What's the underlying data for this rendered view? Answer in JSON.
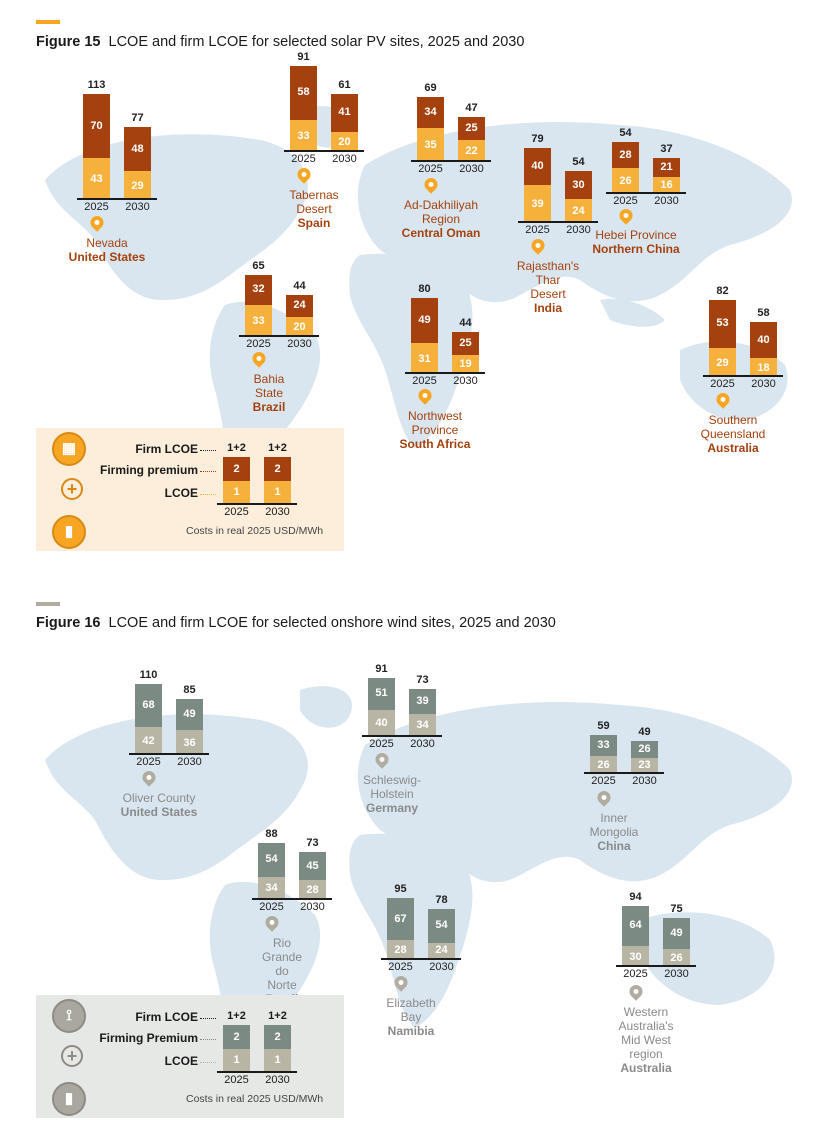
{
  "figure15": {
    "number": "Figure 15",
    "title": "LCOE and firm LCOE for selected solar PV sites, 2025 and 2030",
    "colors": {
      "premium": "#a4410f",
      "lcoe": "#f6b13c",
      "label": "#a4410f",
      "pin": "#f6a623",
      "accent": "#f6a623",
      "legend_bg": "#fdeedb"
    },
    "sites": [
      {
        "place": "Nevada",
        "country": "United States",
        "years": [
          "2025",
          "2030"
        ],
        "totals": [
          "113",
          "77"
        ],
        "premium": [
          "70",
          "48"
        ],
        "lcoe": [
          "43",
          "29"
        ]
      },
      {
        "place": "Tabernas Desert",
        "country": "Spain",
        "years": [
          "2025",
          "2030"
        ],
        "totals": [
          "91",
          "61"
        ],
        "premium": [
          "58",
          "41"
        ],
        "lcoe": [
          "33",
          "20"
        ]
      },
      {
        "place": "Ad-Dakhiliyah Region",
        "country": "Central Oman",
        "years": [
          "2025",
          "2030"
        ],
        "totals": [
          "69",
          "47"
        ],
        "premium": [
          "34",
          "25"
        ],
        "lcoe": [
          "35",
          "22"
        ]
      },
      {
        "place": "Rajasthan's Thar Desert",
        "country": "India",
        "years": [
          "2025",
          "2030"
        ],
        "totals": [
          "79",
          "54"
        ],
        "premium": [
          "40",
          "30"
        ],
        "lcoe": [
          "39",
          "24"
        ]
      },
      {
        "place": "Hebei Province",
        "country": "Northern China",
        "years": [
          "2025",
          "2030"
        ],
        "totals": [
          "54",
          "37"
        ],
        "premium": [
          "28",
          "21"
        ],
        "lcoe": [
          "26",
          "16"
        ]
      },
      {
        "place": "Bahia State",
        "country": "Brazil",
        "years": [
          "2025",
          "2030"
        ],
        "totals": [
          "65",
          "44"
        ],
        "premium": [
          "32",
          "24"
        ],
        "lcoe": [
          "33",
          "20"
        ]
      },
      {
        "place": "Northwest Province",
        "country": "South Africa",
        "years": [
          "2025",
          "2030"
        ],
        "totals": [
          "80",
          "44"
        ],
        "premium": [
          "49",
          "25"
        ],
        "lcoe": [
          "31",
          "19"
        ]
      },
      {
        "place": "Southern Queensland",
        "country": "Australia",
        "years": [
          "2025",
          "2030"
        ],
        "totals": [
          "82",
          "58"
        ],
        "premium": [
          "53",
          "40"
        ],
        "lcoe": [
          "29",
          "18"
        ]
      }
    ],
    "legend": {
      "firm": "Firm LCOE",
      "premium": "Firming premium",
      "lcoe": "LCOE",
      "totals": [
        "1+2",
        "1+2"
      ],
      "premium_vals": [
        "2",
        "2"
      ],
      "lcoe_vals": [
        "1",
        "1"
      ],
      "years": [
        "2025",
        "2030"
      ],
      "note": "Costs in real 2025 USD/MWh",
      "icons": [
        "solar-panel-icon",
        "plus-icon",
        "battery-icon"
      ]
    }
  },
  "figure16": {
    "number": "Figure 16",
    "title": "LCOE and firm LCOE for selected onshore wind sites, 2025 and 2030",
    "colors": {
      "premium": "#7c8a84",
      "lcoe": "#b9b5a4",
      "label": "#8a8a8a",
      "pin": "#b0aca0",
      "accent": "#b0aca0",
      "legend_bg": "#e6e8e6"
    },
    "sites": [
      {
        "place": "Oliver County",
        "country": "United States",
        "years": [
          "2025",
          "2030"
        ],
        "totals": [
          "110",
          "85"
        ],
        "premium": [
          "68",
          "49"
        ],
        "lcoe": [
          "42",
          "36"
        ]
      },
      {
        "place": "Schleswig-Holstein",
        "country": "Germany",
        "years": [
          "2025",
          "2030"
        ],
        "totals": [
          "91",
          "73"
        ],
        "premium": [
          "51",
          "39"
        ],
        "lcoe": [
          "40",
          "34"
        ]
      },
      {
        "place": "Inner Mongolia",
        "country": "China",
        "years": [
          "2025",
          "2030"
        ],
        "totals": [
          "59",
          "49"
        ],
        "premium": [
          "33",
          "26"
        ],
        "lcoe": [
          "26",
          "23"
        ]
      },
      {
        "place": "Rio Grande do Norte",
        "country": "Brazil",
        "years": [
          "2025",
          "2030"
        ],
        "totals": [
          "88",
          "73"
        ],
        "premium": [
          "54",
          "45"
        ],
        "lcoe": [
          "34",
          "28"
        ]
      },
      {
        "place": "Elizabeth Bay",
        "country": "Namibia",
        "years": [
          "2025",
          "2030"
        ],
        "totals": [
          "95",
          "78"
        ],
        "premium": [
          "67",
          "54"
        ],
        "lcoe": [
          "28",
          "24"
        ]
      },
      {
        "place": "Western Australia's Mid West region",
        "country": "Australia",
        "years": [
          "2025",
          "2030"
        ],
        "totals": [
          "94",
          "75"
        ],
        "premium": [
          "64",
          "49"
        ],
        "lcoe": [
          "30",
          "26"
        ]
      }
    ],
    "legend": {
      "firm": "Firm LCOE",
      "premium": "Firming Premium",
      "lcoe": "LCOE",
      "totals": [
        "1+2",
        "1+2"
      ],
      "premium_vals": [
        "2",
        "2"
      ],
      "lcoe_vals": [
        "1",
        "1"
      ],
      "years": [
        "2025",
        "2030"
      ],
      "note": "Costs in real 2025 USD/MWh",
      "icons": [
        "wind-turbine-icon",
        "plus-icon",
        "battery-icon"
      ]
    }
  },
  "chart_data": [
    {
      "type": "bar",
      "title": "LCOE and firm LCOE for selected solar PV sites, 2025 and 2030",
      "unit": "real 2025 USD/MWh",
      "categories": [
        "Nevada 2025",
        "Nevada 2030",
        "Tabernas Desert 2025",
        "Tabernas Desert 2030",
        "Ad-Dakhiliyah Region 2025",
        "Ad-Dakhiliyah Region 2030",
        "Rajasthan's Thar Desert 2025",
        "Rajasthan's Thar Desert 2030",
        "Hebei Province 2025",
        "Hebei Province 2030",
        "Bahia State 2025",
        "Bahia State 2030",
        "Northwest Province 2025",
        "Northwest Province 2030",
        "Southern Queensland 2025",
        "Southern Queensland 2030"
      ],
      "series": [
        {
          "name": "LCOE",
          "values": [
            43,
            29,
            33,
            20,
            35,
            22,
            39,
            24,
            26,
            16,
            33,
            20,
            31,
            19,
            29,
            18
          ]
        },
        {
          "name": "Firming premium",
          "values": [
            70,
            48,
            58,
            41,
            34,
            25,
            40,
            30,
            28,
            21,
            32,
            24,
            49,
            25,
            53,
            40
          ]
        },
        {
          "name": "Firm LCOE",
          "values": [
            113,
            77,
            91,
            61,
            69,
            47,
            79,
            54,
            54,
            37,
            65,
            44,
            80,
            44,
            82,
            58
          ]
        }
      ]
    },
    {
      "type": "bar",
      "title": "LCOE and firm LCOE for selected onshore wind sites, 2025 and 2030",
      "unit": "real 2025 USD/MWh",
      "categories": [
        "Oliver County 2025",
        "Oliver County 2030",
        "Schleswig-Holstein 2025",
        "Schleswig-Holstein 2030",
        "Inner Mongolia 2025",
        "Inner Mongolia 2030",
        "Rio Grande do Norte 2025",
        "Rio Grande do Norte 2030",
        "Elizabeth Bay 2025",
        "Elizabeth Bay 2030",
        "Western Australia's Mid West region 2025",
        "Western Australia's Mid West region 2030"
      ],
      "series": [
        {
          "name": "LCOE",
          "values": [
            42,
            36,
            40,
            34,
            26,
            23,
            34,
            28,
            28,
            24,
            30,
            26
          ]
        },
        {
          "name": "Firming Premium",
          "values": [
            68,
            49,
            51,
            39,
            33,
            26,
            54,
            45,
            67,
            54,
            64,
            49
          ]
        },
        {
          "name": "Firm LCOE",
          "values": [
            110,
            85,
            91,
            73,
            59,
            49,
            88,
            73,
            95,
            78,
            94,
            75
          ]
        }
      ]
    }
  ]
}
